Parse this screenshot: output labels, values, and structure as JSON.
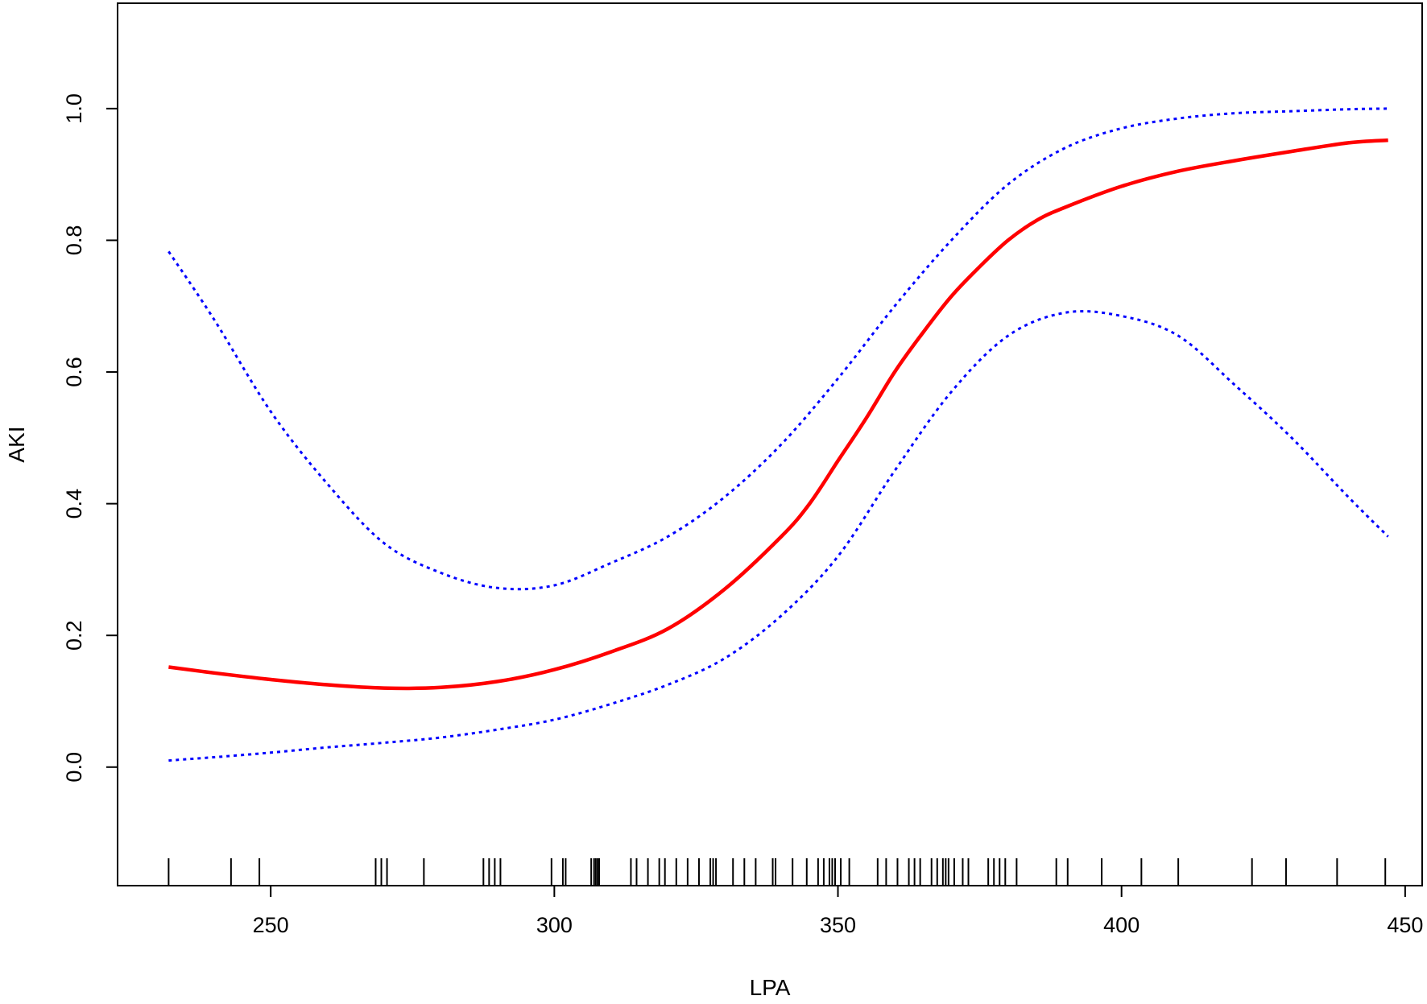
{
  "chart_data": {
    "type": "line",
    "title": "",
    "xlabel": "LPA",
    "ylabel": "AKI",
    "xlim": [
      223,
      453
    ],
    "ylim": [
      -0.18,
      1.16
    ],
    "grid": false,
    "xticks": [
      250,
      300,
      350,
      400,
      450
    ],
    "xtick_labels": [
      "250",
      "300",
      "350",
      "400",
      "450"
    ],
    "yticks": [
      0.0,
      0.2,
      0.4,
      0.6,
      0.8,
      1.0
    ],
    "ytick_labels": [
      "0.0",
      "0.2",
      "0.4",
      "0.6",
      "0.8",
      "1.0"
    ],
    "series": [
      {
        "color": "#ff0000",
        "style": "solid",
        "x": [
          232,
          240,
          250,
          260,
          270,
          280,
          290,
          300,
          310,
          320,
          330,
          340,
          345,
          350,
          355,
          360,
          365,
          370,
          375,
          380,
          385,
          390,
          400,
          410,
          420,
          430,
          440,
          447
        ],
        "y": [
          0.152,
          0.143,
          0.133,
          0.125,
          0.12,
          0.121,
          0.13,
          0.148,
          0.175,
          0.21,
          0.27,
          0.35,
          0.4,
          0.465,
          0.53,
          0.6,
          0.66,
          0.715,
          0.76,
          0.8,
          0.83,
          0.85,
          0.882,
          0.905,
          0.921,
          0.935,
          0.948,
          0.952
        ]
      },
      {
        "color": "#0000ff",
        "style": "dotted",
        "x": [
          232,
          240,
          250,
          260,
          270,
          280,
          290,
          300,
          310,
          320,
          330,
          340,
          350,
          360,
          370,
          380,
          390,
          400,
          410,
          420,
          430,
          440,
          447
        ],
        "y": [
          0.783,
          0.68,
          0.54,
          0.43,
          0.34,
          0.295,
          0.272,
          0.276,
          0.31,
          0.35,
          0.41,
          0.49,
          0.59,
          0.7,
          0.8,
          0.885,
          0.94,
          0.97,
          0.985,
          0.993,
          0.996,
          0.999,
          1.0
        ]
      },
      {
        "color": "#0000ff",
        "style": "dotted",
        "x": [
          232,
          240,
          250,
          260,
          270,
          280,
          290,
          300,
          310,
          320,
          330,
          340,
          350,
          360,
          370,
          380,
          390,
          400,
          410,
          420,
          430,
          440,
          447
        ],
        "y": [
          0.01,
          0.015,
          0.022,
          0.03,
          0.037,
          0.045,
          0.057,
          0.072,
          0.096,
          0.125,
          0.165,
          0.23,
          0.32,
          0.45,
          0.57,
          0.655,
          0.69,
          0.685,
          0.655,
          0.58,
          0.5,
          0.41,
          0.35
        ]
      }
    ],
    "rug": [
      232,
      243,
      248,
      268.5,
      269.5,
      270.5,
      277,
      287.5,
      288.5,
      289.5,
      290.5,
      299.5,
      301.5,
      302,
      306.5,
      307,
      307.3,
      307.6,
      307.9,
      313.5,
      314.5,
      316.5,
      318.5,
      319.5,
      321.5,
      323.5,
      325.5,
      327.5,
      328,
      328.5,
      331.5,
      333.5,
      335.5,
      338.5,
      339,
      342,
      344.5,
      346.5,
      347.5,
      348.5,
      349,
      349.5,
      350.5,
      352,
      357,
      358.5,
      360.5,
      362.5,
      363.5,
      364.5,
      366.5,
      367.5,
      368.5,
      369,
      369.5,
      370.5,
      372,
      373,
      376.5,
      377.5,
      378.5,
      379.5,
      381.5,
      388.5,
      390.5,
      396.5,
      403.5,
      410,
      423,
      429,
      438,
      446.5
    ]
  }
}
